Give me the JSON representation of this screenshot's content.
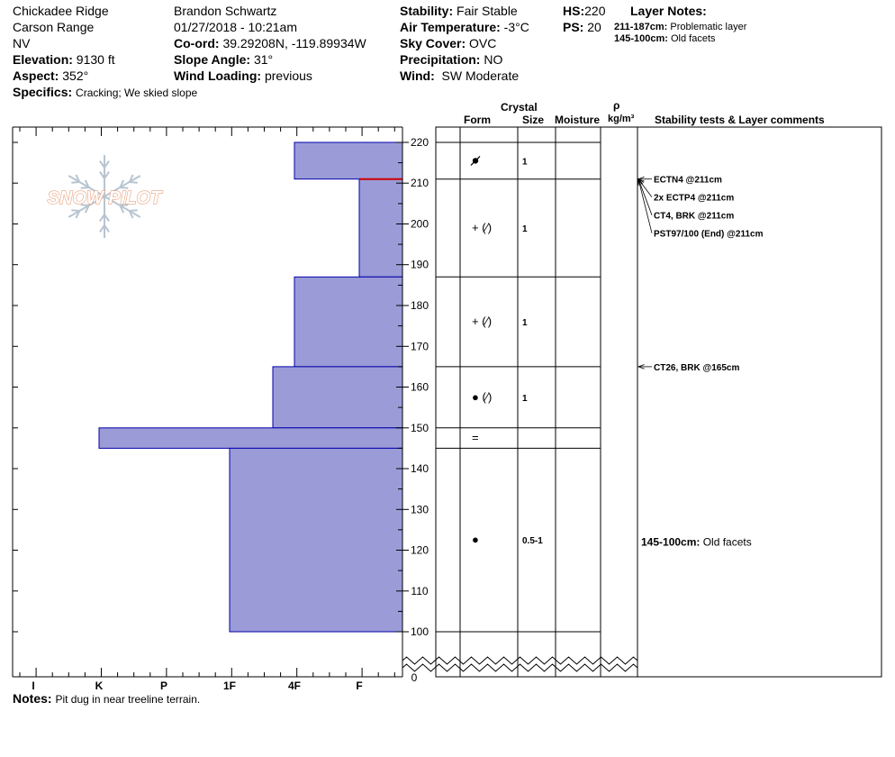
{
  "header": {
    "location": "Chickadee Ridge",
    "range": "Carson Range",
    "state": "NV",
    "elevation_label": "Elevation:",
    "elevation_value": "9130 ft",
    "aspect_label": "Aspect:",
    "aspect_value": "352°",
    "specifics_label": "Specifics:",
    "specifics_value": "Cracking;  We skied slope",
    "observer": "Brandon Schwartz",
    "datetime": "01/27/2018 - 10:21am",
    "coord_label": "Co-ord:",
    "coord_value": "39.29208N, -119.89934W",
    "slope_label": "Slope Angle:",
    "slope_value": "31°",
    "wind_loading_label": "Wind Loading:",
    "wind_loading_value": "previous",
    "stability_label": "Stability:",
    "stability_value": "Fair Stable",
    "airtemp_label": "Air Temperature:",
    "airtemp_value": "-3°C",
    "sky_label": "Sky Cover:",
    "sky_value": "OVC",
    "precip_label": "Precipitation:",
    "precip_value": "NO",
    "wind_label": "Wind:",
    "wind_value": "SW Moderate",
    "hs_label": "HS:",
    "hs_value": "220",
    "ps_label": "PS:",
    "ps_value": "20",
    "layer_notes_label": "Layer Notes:",
    "layer_notes": [
      {
        "range": "211-187cm:",
        "text": "Problematic layer"
      },
      {
        "range": "145-100cm:",
        "text": "Old facets"
      }
    ]
  },
  "logo_text": "SNOW PILOT",
  "notes_label": "Notes:",
  "notes_value": "Pit dug in near treeline terrain.",
  "columns": {
    "crystal": "Crystal",
    "form": "Form",
    "size": "Size",
    "moisture": "Moisture",
    "rho": "ρ",
    "density_unit": "kg/m³",
    "comments": "Stability tests & Layer comments"
  },
  "colors": {
    "hardness_fill": "#9b9bd8",
    "hardness_stroke": "#0000aa",
    "weak_layer_line": "#cc0000",
    "logo": "#e8a07a",
    "snowflake": "#b8c4d0"
  },
  "chart_data": {
    "type": "bar",
    "orientation": "horizontal",
    "title": "",
    "xlabel": "",
    "ylabel": "",
    "hardness_scale": [
      "I",
      "K",
      "P",
      "1F",
      "4F",
      "F"
    ],
    "x_axis_order": "hand hardness, decreasing left to right",
    "ylim": [
      100,
      220
    ],
    "y_ticks": [
      100,
      110,
      120,
      130,
      140,
      150,
      160,
      170,
      180,
      190,
      200,
      210,
      220
    ],
    "y_break_label": "0",
    "weak_layer_height": 211,
    "layers": [
      {
        "top": 220,
        "bottom": 211,
        "hardness": "4F",
        "form_symbol": "grain-faceted-rounded",
        "size": "1"
      },
      {
        "top": 211,
        "bottom": 187,
        "hardness": "F",
        "form_symbol": "+ (⁄)",
        "size": "1"
      },
      {
        "top": 187,
        "bottom": 165,
        "hardness": "4F",
        "form_symbol": "+ (⁄)",
        "size": "1"
      },
      {
        "top": 165,
        "bottom": 150,
        "hardness": "4F-1F",
        "form_symbol": "● (⁄)",
        "size": "1"
      },
      {
        "top": 150,
        "bottom": 145,
        "hardness": "K",
        "form_symbol": "=",
        "size": ""
      },
      {
        "top": 145,
        "bottom": 100,
        "hardness": "1F",
        "form_symbol": "●",
        "size": "0.5-1"
      }
    ],
    "stability_tests": [
      {
        "height": 211,
        "label": "ECTN4 @211cm"
      },
      {
        "height": 211,
        "label": "2x ECTP4 @211cm"
      },
      {
        "height": 211,
        "label": "CT4, BRK @211cm"
      },
      {
        "height": 211,
        "label": "PST97/100 (End) @211cm"
      },
      {
        "height": 165,
        "label": "CT26, BRK @165cm"
      }
    ],
    "layer_comments": [
      {
        "height": 122,
        "range": "145-100cm:",
        "text": "Old facets"
      }
    ]
  }
}
